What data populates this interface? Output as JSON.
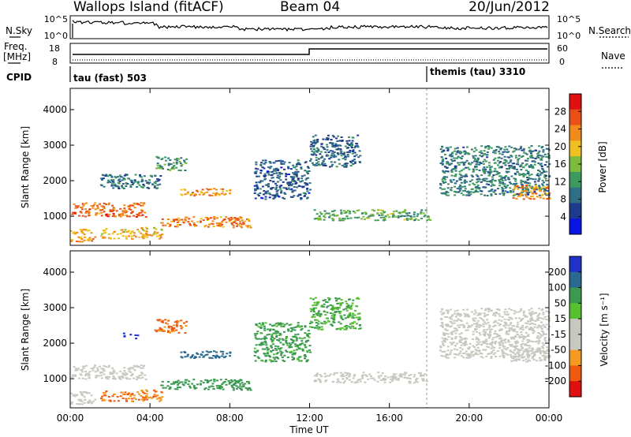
{
  "header": {
    "station": "Wallops Island (fitACF)",
    "beam": "Beam 04",
    "date": "20/Jun/2012"
  },
  "summary": {
    "nsky_label": "N.Sky",
    "nsky_ticks": [
      "10^5",
      "10^0"
    ],
    "nsearch_label": "N.Search",
    "nsearch_ticks": [
      "10^5",
      "10^0"
    ],
    "freq_label": "Freq.",
    "freq_unit": "[MHz]",
    "freq_ticks": [
      "18",
      "8"
    ],
    "nave_label": "Nave",
    "nave_ticks": [
      "60",
      "0"
    ],
    "cpid_label": "CPID",
    "cpid_segments": [
      {
        "label": "tau (fast) 503",
        "start_hour": 0
      },
      {
        "label": "themis (tau) 3310",
        "start_hour": 18
      }
    ]
  },
  "colors": {
    "power": [
      "#0a14e6",
      "#1e3a8f",
      "#2f6f86",
      "#3c9a5e",
      "#7dbb3a",
      "#f0c020",
      "#f08a18",
      "#ea5016",
      "#e01010"
    ],
    "velocity": [
      "#e01010",
      "#f05a10",
      "#f59a20",
      "#c8c8c0",
      "#c8c8c0",
      "#56c02e",
      "#3a9a50",
      "#2a6a90",
      "#2030c8"
    ],
    "ground_scatter": "#c0c0b8"
  },
  "chart_data": [
    {
      "type": "heatmap",
      "panel": "power",
      "ylabel": "Slant Range [km]",
      "ylim": [
        180,
        4600
      ],
      "yticks": [
        "1000",
        "2000",
        "3000",
        "4000"
      ],
      "xlim_hours": [
        0,
        24
      ],
      "colorbar": {
        "label": "Power [dB]",
        "range": [
          0,
          32
        ],
        "ticks": [
          "4",
          "8",
          "12",
          "16",
          "20",
          "24",
          "28"
        ]
      },
      "echo_regions": [
        {
          "t0": 0.0,
          "t1": 3.8,
          "r0": 1000,
          "r1": 1400,
          "value": 25
        },
        {
          "t0": 0.0,
          "t1": 1.2,
          "r0": 300,
          "r1": 650,
          "value": 22
        },
        {
          "t0": 1.5,
          "t1": 4.6,
          "r0": 380,
          "r1": 700,
          "value": 21
        },
        {
          "t0": 4.5,
          "t1": 9.0,
          "r0": 700,
          "r1": 1000,
          "value": 24
        },
        {
          "t0": 5.5,
          "t1": 8.2,
          "r0": 1600,
          "r1": 1800,
          "value": 22
        },
        {
          "t0": 4.2,
          "t1": 5.8,
          "r0": 2300,
          "r1": 2700,
          "value": 12
        },
        {
          "t0": 1.5,
          "t1": 4.5,
          "r0": 1800,
          "r1": 2200,
          "value": 9
        },
        {
          "t0": 9.2,
          "t1": 12.0,
          "r0": 1500,
          "r1": 2600,
          "value": 7
        },
        {
          "t0": 12.2,
          "t1": 18.0,
          "r0": 900,
          "r1": 1200,
          "value": 14
        },
        {
          "t0": 12.0,
          "t1": 14.5,
          "r0": 2400,
          "r1": 3300,
          "value": 8
        },
        {
          "t0": 18.5,
          "t1": 24.0,
          "r0": 1600,
          "r1": 3000,
          "value": 10
        },
        {
          "t0": 22.0,
          "t1": 24.0,
          "r0": 1500,
          "r1": 1900,
          "value": 22
        }
      ]
    },
    {
      "type": "heatmap",
      "panel": "velocity",
      "ylabel": "Slant Range [km]",
      "xlabel": "Time UT",
      "ylim": [
        180,
        4600
      ],
      "yticks": [
        "1000",
        "2000",
        "3000",
        "4000"
      ],
      "xlim_hours": [
        0,
        24
      ],
      "xticks": [
        "00:00",
        "04:00",
        "08:00",
        "12:00",
        "16:00",
        "20:00",
        "00:00"
      ],
      "colorbar": {
        "label": "Velocity [m s⁻¹]",
        "ticks": [
          "200",
          "100",
          "50",
          "15",
          "-15",
          "-50",
          "-100",
          "-200"
        ]
      },
      "echo_regions": [
        {
          "t0": 0.0,
          "t1": 3.8,
          "r0": 1000,
          "r1": 1400,
          "value": 0
        },
        {
          "t0": 0.0,
          "t1": 1.2,
          "r0": 300,
          "r1": 650,
          "value": 0
        },
        {
          "t0": 1.5,
          "t1": 4.6,
          "r0": 380,
          "r1": 700,
          "value": -30
        },
        {
          "t0": 4.5,
          "t1": 9.0,
          "r0": 700,
          "r1": 1000,
          "value": 60
        },
        {
          "t0": 5.5,
          "t1": 8.2,
          "r0": 1600,
          "r1": 1800,
          "value": 120
        },
        {
          "t0": 2.6,
          "t1": 3.4,
          "r0": 2150,
          "r1": 2300,
          "value": 200
        },
        {
          "t0": 4.2,
          "t1": 5.8,
          "r0": 2300,
          "r1": 2700,
          "value": -40
        },
        {
          "t0": 9.2,
          "t1": 12.0,
          "r0": 1500,
          "r1": 2600,
          "value": 40
        },
        {
          "t0": 12.2,
          "t1": 18.0,
          "r0": 900,
          "r1": 1200,
          "value": 0
        },
        {
          "t0": 12.0,
          "t1": 14.5,
          "r0": 2400,
          "r1": 3300,
          "value": 30
        },
        {
          "t0": 18.5,
          "t1": 24.0,
          "r0": 1600,
          "r1": 3000,
          "value": 0
        },
        {
          "t0": 22.0,
          "t1": 24.0,
          "r0": 1500,
          "r1": 1900,
          "value": 0
        }
      ]
    }
  ]
}
